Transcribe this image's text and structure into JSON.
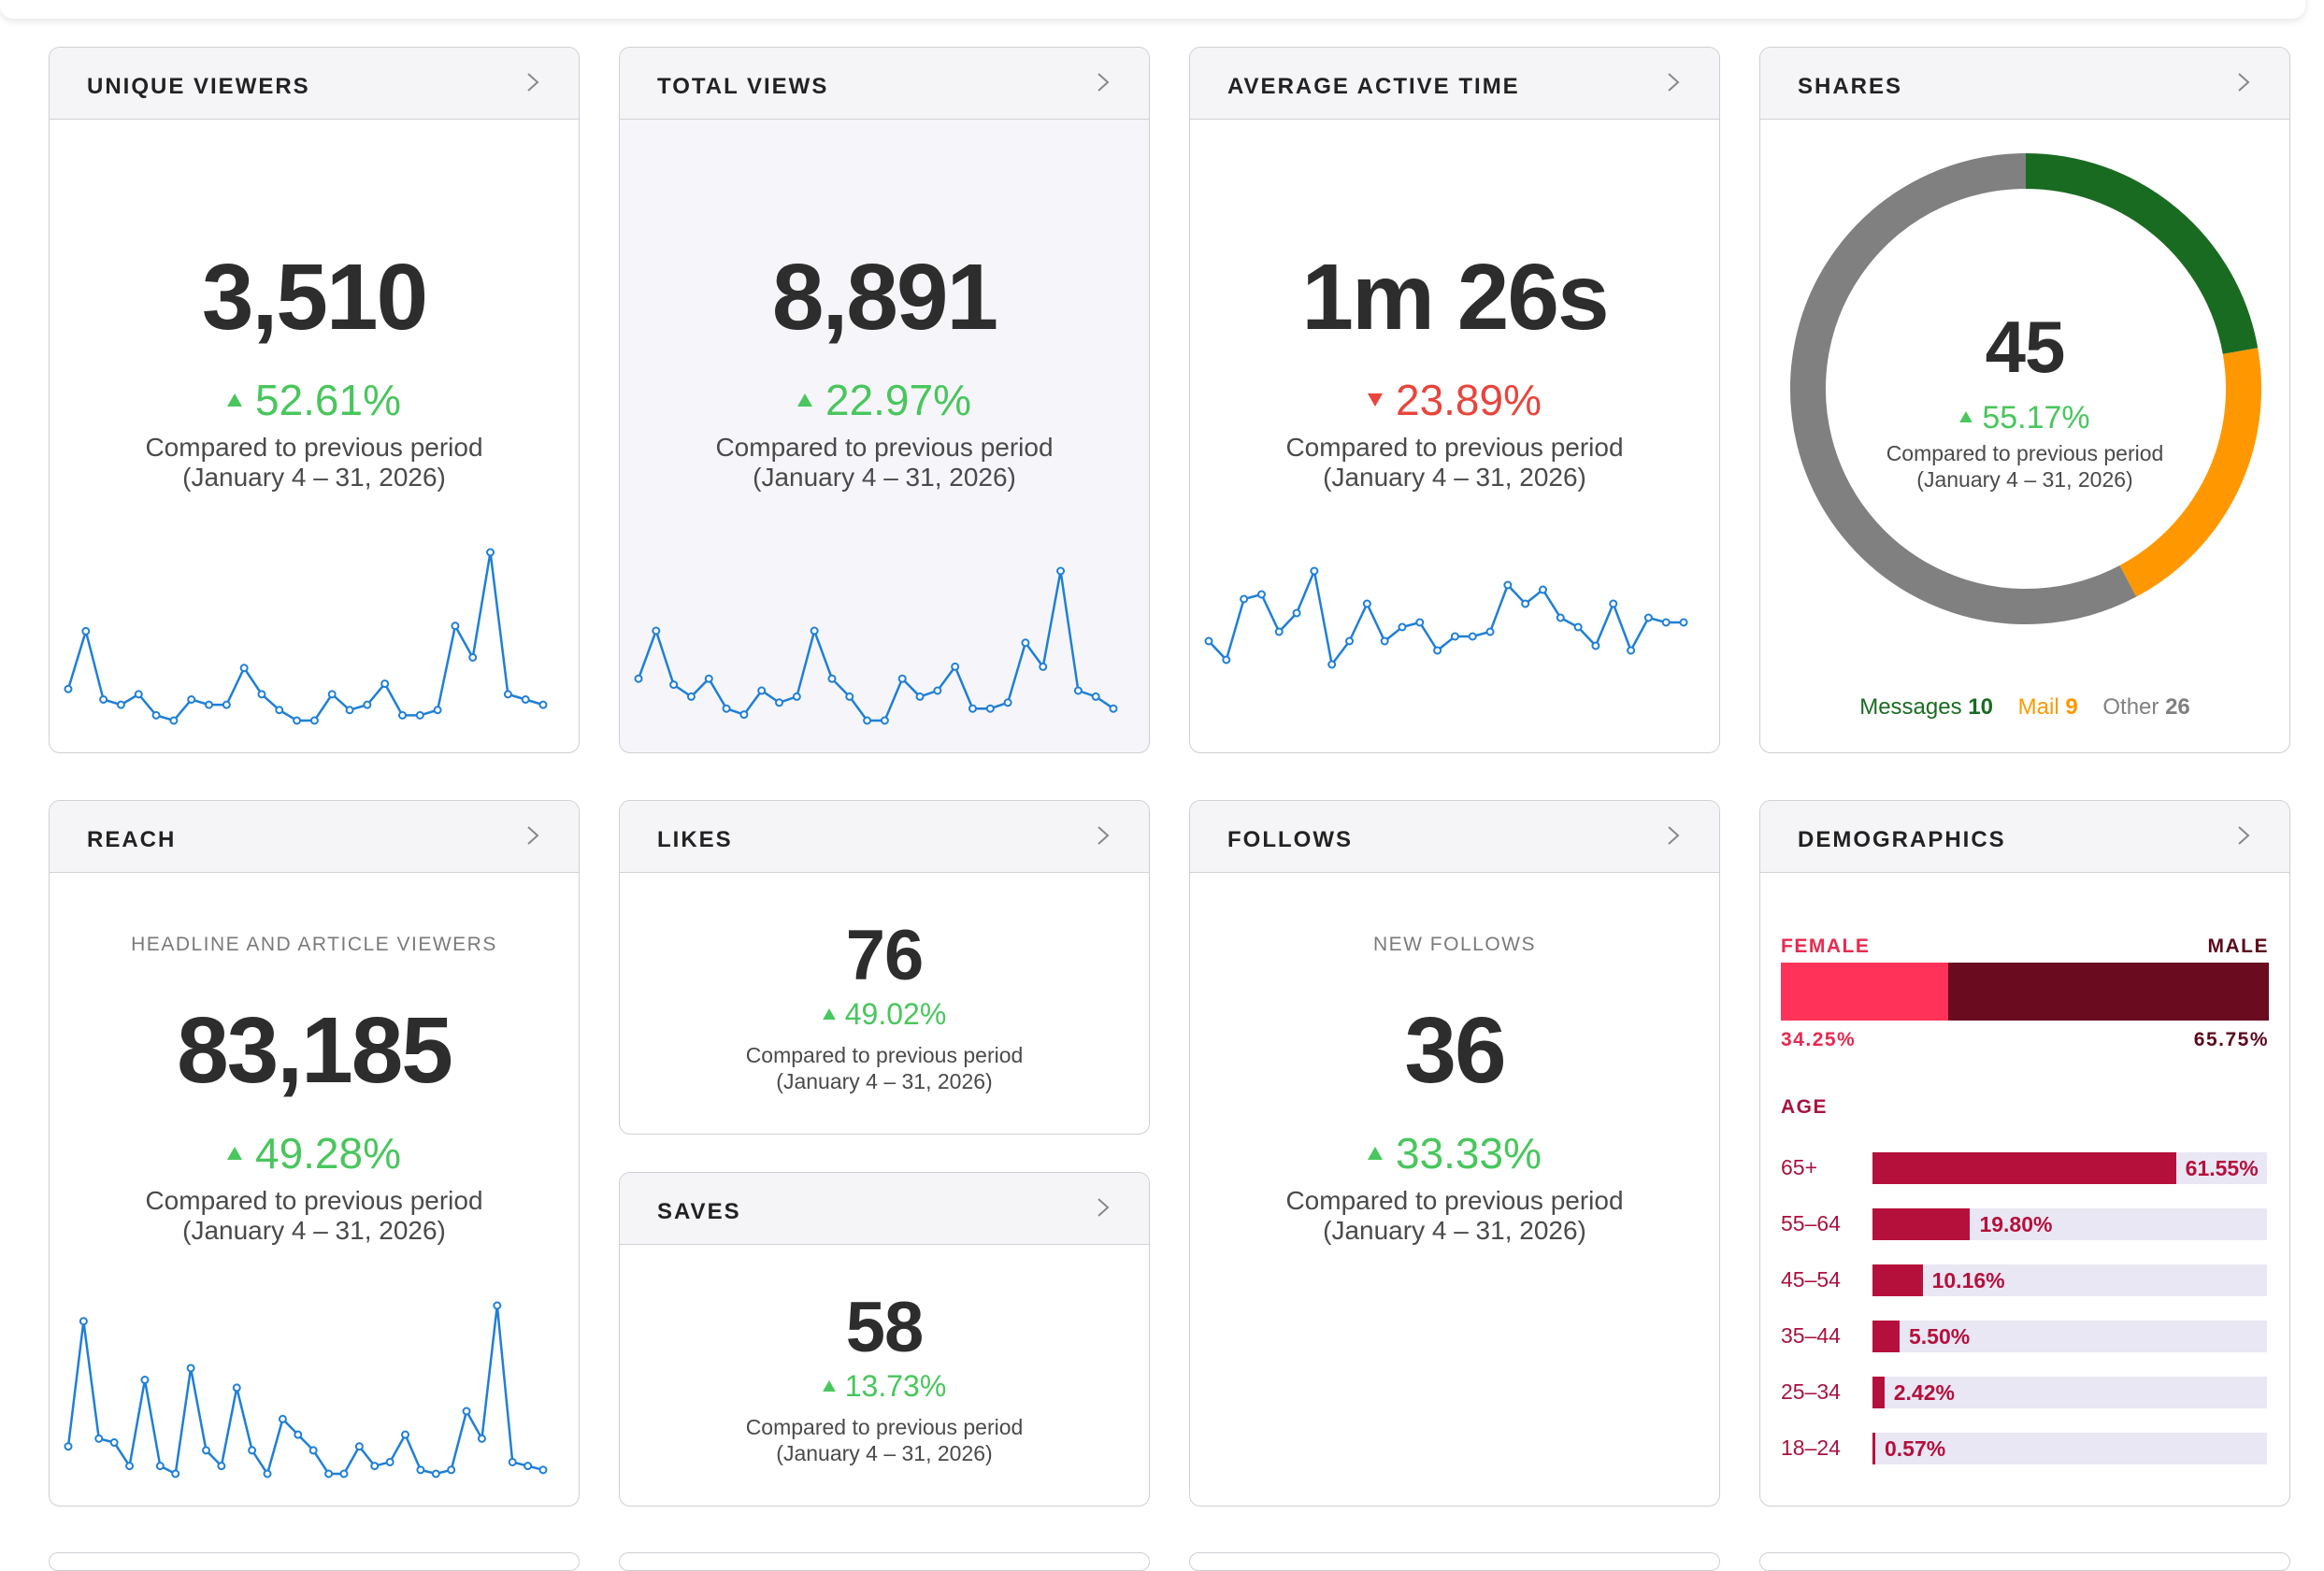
{
  "colors": {
    "positive": "#49c65d",
    "negative": "#e8453c",
    "spark": "#1f7fd6",
    "messages": "#1a6b22",
    "mail": "#ff9800",
    "other": "#808080",
    "female": "#ff3259",
    "male": "#6a0b1f",
    "age_bar": "#b5103c",
    "age_track": "#e9e7f3"
  },
  "comparison_text": "Compared to previous period",
  "comparison_range": "(January 4 – 31, 2026)",
  "cards": {
    "unique_viewers": {
      "title": "UNIQUE VIEWERS",
      "value": "3,510",
      "change": "52.61%",
      "direction": "up",
      "spark": [
        14,
        25,
        12,
        11,
        13,
        9,
        8,
        12,
        11,
        11,
        18,
        13,
        10,
        8,
        8,
        13,
        10,
        11,
        15,
        9,
        9,
        10,
        26,
        20,
        40,
        13,
        12,
        11
      ]
    },
    "total_views": {
      "title": "TOTAL VIEWS",
      "value": "8,891",
      "change": "22.97%",
      "direction": "up",
      "spark": [
        14,
        22,
        13,
        11,
        14,
        9,
        8,
        12,
        10,
        11,
        22,
        14,
        11,
        7,
        7,
        14,
        11,
        12,
        16,
        9,
        9,
        10,
        20,
        16,
        32,
        12,
        11,
        9
      ]
    },
    "average_active_time": {
      "title": "AVERAGE ACTIVE TIME",
      "value": "1m 26s",
      "change": "23.89%",
      "direction": "down",
      "spark": [
        20,
        16,
        29,
        30,
        22,
        26,
        35,
        15,
        20,
        28,
        20,
        23,
        24,
        18,
        21,
        21,
        22,
        32,
        28,
        31,
        25,
        23,
        19,
        28,
        18,
        25,
        24,
        24
      ]
    },
    "shares": {
      "title": "SHARES",
      "value": "45",
      "change": "55.17%",
      "direction": "up",
      "segments": [
        {
          "label": "Messages",
          "value": 10,
          "color_key": "messages"
        },
        {
          "label": "Mail",
          "value": 9,
          "color_key": "mail"
        },
        {
          "label": "Other",
          "value": 26,
          "color_key": "other"
        }
      ]
    },
    "reach": {
      "title": "REACH",
      "subtitle": "HEADLINE AND ARTICLE VIEWERS",
      "value": "83,185",
      "change": "49.28%",
      "direction": "up",
      "spark": [
        13,
        45,
        15,
        14,
        8,
        30,
        8,
        6,
        33,
        12,
        8,
        28,
        12,
        6,
        20,
        16,
        12,
        6,
        6,
        13,
        8,
        9,
        16,
        7,
        6,
        7,
        22,
        15,
        49,
        9,
        8,
        7
      ]
    },
    "likes": {
      "title": "LIKES",
      "value": "76",
      "change": "49.02%",
      "direction": "up"
    },
    "saves": {
      "title": "SAVES",
      "value": "58",
      "change": "13.73%",
      "direction": "up"
    },
    "follows": {
      "title": "FOLLOWS",
      "subtitle": "NEW FOLLOWS",
      "value": "36",
      "change": "33.33%",
      "direction": "up"
    },
    "demographics": {
      "title": "DEMOGRAPHICS",
      "female_label": "FEMALE",
      "male_label": "MALE",
      "female_pct": "34.25%",
      "male_pct": "65.75%",
      "female_value": 34.25,
      "male_value": 65.75,
      "age_label": "AGE",
      "ages": [
        {
          "label": "65+",
          "value": 61.55,
          "text": "61.55%"
        },
        {
          "label": "55–64",
          "value": 19.8,
          "text": "19.80%"
        },
        {
          "label": "45–54",
          "value": 10.16,
          "text": "10.16%"
        },
        {
          "label": "35–44",
          "value": 5.5,
          "text": "5.50%"
        },
        {
          "label": "25–34",
          "value": 2.42,
          "text": "2.42%"
        },
        {
          "label": "18–24",
          "value": 0.57,
          "text": "0.57%"
        }
      ]
    }
  }
}
